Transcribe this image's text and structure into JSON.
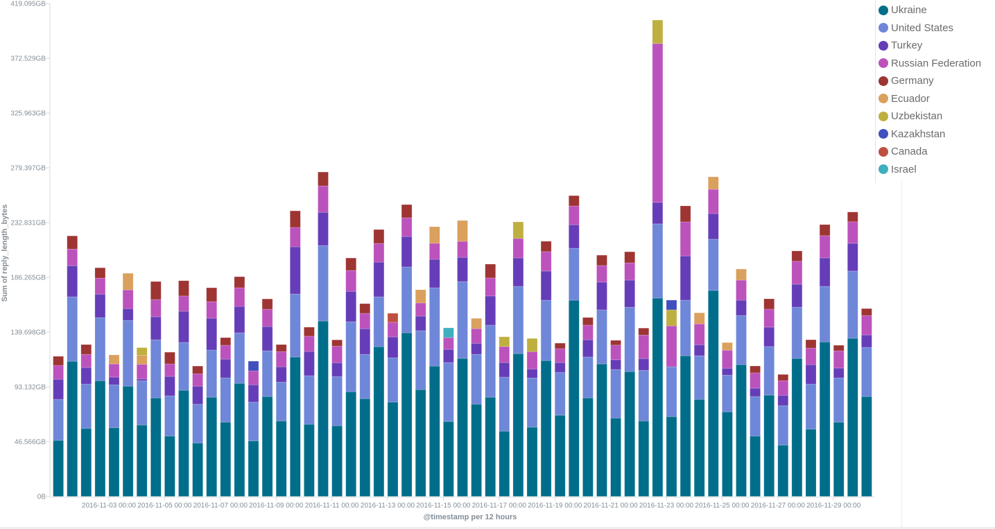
{
  "chart_data": {
    "type": "bar",
    "stacked": true,
    "xlabel": "@timestamp per 12 hours",
    "ylabel": "Sum of reply_length_bytes",
    "ylim": [
      0,
      419.095
    ],
    "y_unit": "GB",
    "y_ticks": [
      "0B",
      "46.566GB",
      "93.132GB",
      "139.698GB",
      "186.265GB",
      "232.831GB",
      "279.397GB",
      "325.963GB",
      "372.529GB",
      "419.095GB"
    ],
    "y_tick_values": [
      0,
      46.566,
      93.132,
      139.698,
      186.265,
      232.831,
      279.397,
      325.963,
      372.529,
      419.095
    ],
    "x_start": "2016-11-01 00:00",
    "x_interval": "12 hours",
    "x_ticks": [
      {
        "bar": 4,
        "label": "2016-11-03 00:00"
      },
      {
        "bar": 8,
        "label": "2016-11-05 00:00"
      },
      {
        "bar": 12,
        "label": "2016-11-07 00:00"
      },
      {
        "bar": 16,
        "label": "2016-11-09 00:00"
      },
      {
        "bar": 20,
        "label": "2016-11-11 00:00"
      },
      {
        "bar": 24,
        "label": "2016-11-13 00:00"
      },
      {
        "bar": 28,
        "label": "2016-11-15 00:00"
      },
      {
        "bar": 32,
        "label": "2016-11-17 00:00"
      },
      {
        "bar": 36,
        "label": "2016-11-19 00:00"
      },
      {
        "bar": 40,
        "label": "2016-11-21 00:00"
      },
      {
        "bar": 44,
        "label": "2016-11-23 00:00"
      },
      {
        "bar": 48,
        "label": "2016-11-25 00:00"
      },
      {
        "bar": 52,
        "label": "2016-11-27 00:00"
      },
      {
        "bar": 56,
        "label": "2016-11-29 00:00"
      }
    ],
    "legend_position": "top-right",
    "grid": false,
    "series": [
      {
        "name": "Ukraine",
        "color": "#006e8a",
        "values": [
          47.7,
          114.9,
          57.8,
          98.4,
          58.4,
          93.7,
          60.7,
          83.7,
          51.3,
          90.2,
          45.4,
          84.3,
          63.1,
          96.1,
          47.2,
          84.9,
          64.2,
          118.5,
          61.3,
          149.1,
          60.1,
          89.0,
          83.1,
          127.3,
          80.2,
          139.1,
          90.8,
          110.8,
          63.7,
          117.3,
          78.4,
          84.3,
          55.4,
          121.4,
          58.9,
          115.5,
          69.0,
          166.8,
          83.7,
          112.6,
          66.6,
          106.1,
          64.2,
          168.6,
          67.8,
          119.6,
          82.5,
          175.1,
          71.9,
          112.0,
          51.3,
          86.1,
          43.6,
          117.3,
          57.2,
          131.4,
          63.1,
          134.4,
          84.9,
          111.4
        ]
      },
      {
        "name": "United States",
        "color": "#6f87d8",
        "values": [
          34.8,
          54.8,
          37.7,
          53.6,
          36.5,
          56.0,
          37.7,
          49.5,
          34.2,
          40.7,
          33.0,
          40.1,
          37.7,
          43.0,
          33.0,
          38.9,
          33.0,
          53.6,
          41.3,
          64.2,
          41.8,
          59.5,
          37.7,
          42.4,
          37.7,
          56.0,
          50.1,
          66.6,
          50.1,
          65.4,
          42.4,
          61.3,
          46.0,
          57.2,
          41.8,
          51.3,
          36.5,
          44.2,
          34.8,
          46.0,
          41.3,
          54.8,
          43.0,
          63.1,
          42.4,
          47.2,
          37.1,
          43.6,
          31.2,
          41.8,
          33.6,
          41.3,
          33.6,
          43.6,
          38.3,
          47.2,
          37.7,
          57.2,
          41.8,
          66.0
        ]
      },
      {
        "name": "Turkey",
        "color": "#663db8",
        "values": [
          17.1,
          26.5,
          14.1,
          20.0,
          6.5,
          10.0,
          1.5,
          19.5,
          16.5,
          26.5,
          15.3,
          27.1,
          15.9,
          22.4,
          14.7,
          20.6,
          13.0,
          40.1,
          20.6,
          28.3,
          11.8,
          25.9,
          21.8,
          29.5,
          17.7,
          25.9,
          12.4,
          24.2,
          11.2,
          20.6,
          9.4,
          24.8,
          12.4,
          24.2,
          7.7,
          24.8,
          8.3,
          20.0,
          14.7,
          23.6,
          8.3,
          23.0,
          10.0,
          18.3,
          0,
          37.7,
          9.4,
          21.8,
          5.9,
          13.0,
          7.1,
          16.5,
          8.8,
          19.5,
          16.5,
          24.2,
          8.3,
          23.6,
          10.6,
          12.4
        ]
      },
      {
        "name": "Russian Federation",
        "color": "#bc52bc",
        "values": [
          11.8,
          14.1,
          11.2,
          13.6,
          11.2,
          15.9,
          12.4,
          14.7,
          10.6,
          13.0,
          10.6,
          14.1,
          11.8,
          15.9,
          11.8,
          14.7,
          13.0,
          16.5,
          13.0,
          22.4,
          14.1,
          17.7,
          13.0,
          15.9,
          12.4,
          15.9,
          11.2,
          13.6,
          10.0,
          13.6,
          12.4,
          15.3,
          13.6,
          16.5,
          14.7,
          16.5,
          11.8,
          15.9,
          12.4,
          14.1,
          12.4,
          14.7,
          20.0,
          135.0,
          34.8,
          28.9,
          17.7,
          20.6,
          15.3,
          17.1,
          13.0,
          15.3,
          12.4,
          19.5,
          14.1,
          18.9,
          14.7,
          18.3,
          16.5,
          19.5
        ]
      },
      {
        "name": "Germany",
        "color": "#9e3533",
        "values": [
          7.7,
          11.2,
          8.3,
          8.8,
          0,
          0,
          0,
          15.3,
          10.0,
          13.0,
          6.5,
          11.8,
          6.5,
          9.4,
          0,
          8.8,
          5.9,
          14.1,
          7.7,
          11.8,
          5.3,
          10.6,
          8.3,
          11.8,
          0,
          11.2,
          0,
          0,
          0,
          0,
          0,
          11.8,
          0,
          0,
          0,
          8.8,
          4.7,
          8.8,
          6.5,
          8.8,
          4.1,
          9.4,
          5.9,
          0,
          0,
          13.6,
          0,
          0,
          0,
          0,
          5.9,
          8.8,
          5.3,
          8.8,
          7.1,
          9.4,
          4.7,
          8.3,
          5.9,
          7.7
        ]
      },
      {
        "name": "Ecuador",
        "color": "#daa05d",
        "values": [
          0,
          0,
          0,
          0,
          7.7,
          14.1,
          7.7,
          0,
          0,
          0,
          0,
          0,
          0,
          0,
          0,
          0,
          0,
          0,
          0,
          0,
          0,
          0,
          0,
          0,
          0,
          0,
          11.2,
          14.1,
          0,
          17.7,
          8.8,
          0,
          0,
          0,
          0,
          0,
          0,
          0,
          0,
          0,
          0,
          0,
          0,
          0,
          0,
          0,
          9.4,
          10.6,
          6.5,
          9.4,
          0,
          0,
          0,
          0,
          0,
          0,
          0,
          0,
          0,
          0
        ]
      },
      {
        "name": "Uzbekistan",
        "color": "#bfaf40",
        "values": [
          0,
          0,
          0,
          0,
          0,
          0,
          6.5,
          0,
          0,
          0,
          0,
          0,
          0,
          0,
          0,
          0,
          0,
          0,
          0,
          0,
          0,
          0,
          0,
          0,
          0,
          0,
          0,
          0,
          0,
          0,
          0,
          0,
          8.3,
          14.1,
          11.2,
          0,
          0,
          0,
          0,
          0,
          0,
          0,
          0,
          20.0,
          13.6,
          0,
          0,
          0,
          0,
          0,
          0,
          0,
          0,
          0,
          0,
          0,
          0,
          0,
          0,
          0
        ]
      },
      {
        "name": "Kazakhstan",
        "color": "#4050bf",
        "values": [
          0,
          0,
          0,
          0,
          0,
          0,
          0,
          0,
          0,
          0,
          0,
          0,
          0,
          0,
          8.3,
          0,
          0,
          0,
          0,
          0,
          0,
          0,
          0,
          0,
          0,
          0,
          0,
          0,
          0,
          0,
          0,
          0,
          0,
          0,
          0,
          0,
          0,
          0,
          0,
          0,
          0,
          0,
          0,
          0,
          8.3,
          0,
          0,
          0,
          0,
          0,
          0,
          0,
          0,
          0,
          0,
          0,
          0,
          0,
          0,
          0
        ]
      },
      {
        "name": "Canada",
        "color": "#bf5040",
        "values": [
          0,
          0,
          0,
          0,
          0,
          0,
          0,
          0,
          0,
          0,
          0,
          0,
          0,
          0,
          0,
          0,
          0,
          0,
          0,
          0,
          0,
          0,
          0,
          0,
          7.7,
          0,
          0,
          0,
          0,
          0,
          0,
          0,
          0,
          0,
          0,
          0,
          0,
          0,
          0,
          0,
          0,
          0,
          0,
          0,
          0,
          0,
          0,
          0,
          0,
          0,
          0,
          0,
          0,
          0,
          0,
          0,
          0,
          0,
          0,
          0
        ]
      },
      {
        "name": "Israel",
        "color": "#3fafbf",
        "values": [
          0,
          0,
          0,
          0,
          0,
          0,
          0,
          0,
          0,
          0,
          0,
          0,
          0,
          0,
          0,
          0,
          0,
          0,
          0,
          0,
          0,
          0,
          0,
          0,
          0,
          0,
          0,
          0,
          8.3,
          0,
          0,
          0,
          0,
          0,
          0,
          0,
          0,
          0,
          0,
          0,
          0,
          0,
          0,
          0,
          0,
          0,
          0,
          0,
          0,
          0,
          0,
          0,
          0,
          0,
          0,
          0,
          0,
          0,
          0,
          0
        ]
      }
    ]
  }
}
